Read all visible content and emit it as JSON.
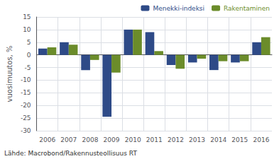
{
  "chart_data": {
    "type": "bar",
    "categories": [
      "2006",
      "2007",
      "2008",
      "2009",
      "2010",
      "2011",
      "2012",
      "2013",
      "2014",
      "2015",
      "2016"
    ],
    "series": [
      {
        "name": "Menekki-indeksi",
        "color": "#2E4A87",
        "values": [
          2.5,
          5.0,
          -6.0,
          -24.5,
          10.0,
          9.0,
          -4.0,
          -3.0,
          -6.0,
          -3.0,
          5.0
        ]
      },
      {
        "name": "Rakentaminen",
        "color": "#6B8C2A",
        "values": [
          3.0,
          4.0,
          -2.0,
          -7.0,
          10.0,
          1.5,
          -5.5,
          -1.5,
          -2.5,
          -2.5,
          7.0
        ]
      }
    ],
    "ylabel": "vuosimuutos, %",
    "ylim": [
      -30,
      15
    ],
    "yticks": [
      -30,
      -25,
      -20,
      -15,
      -10,
      -5,
      0,
      5,
      10,
      15
    ],
    "grid": true,
    "legend": "upper right",
    "annotations": [
      "Lähde: Macrobond/Rakennusteollisuus RT"
    ]
  }
}
